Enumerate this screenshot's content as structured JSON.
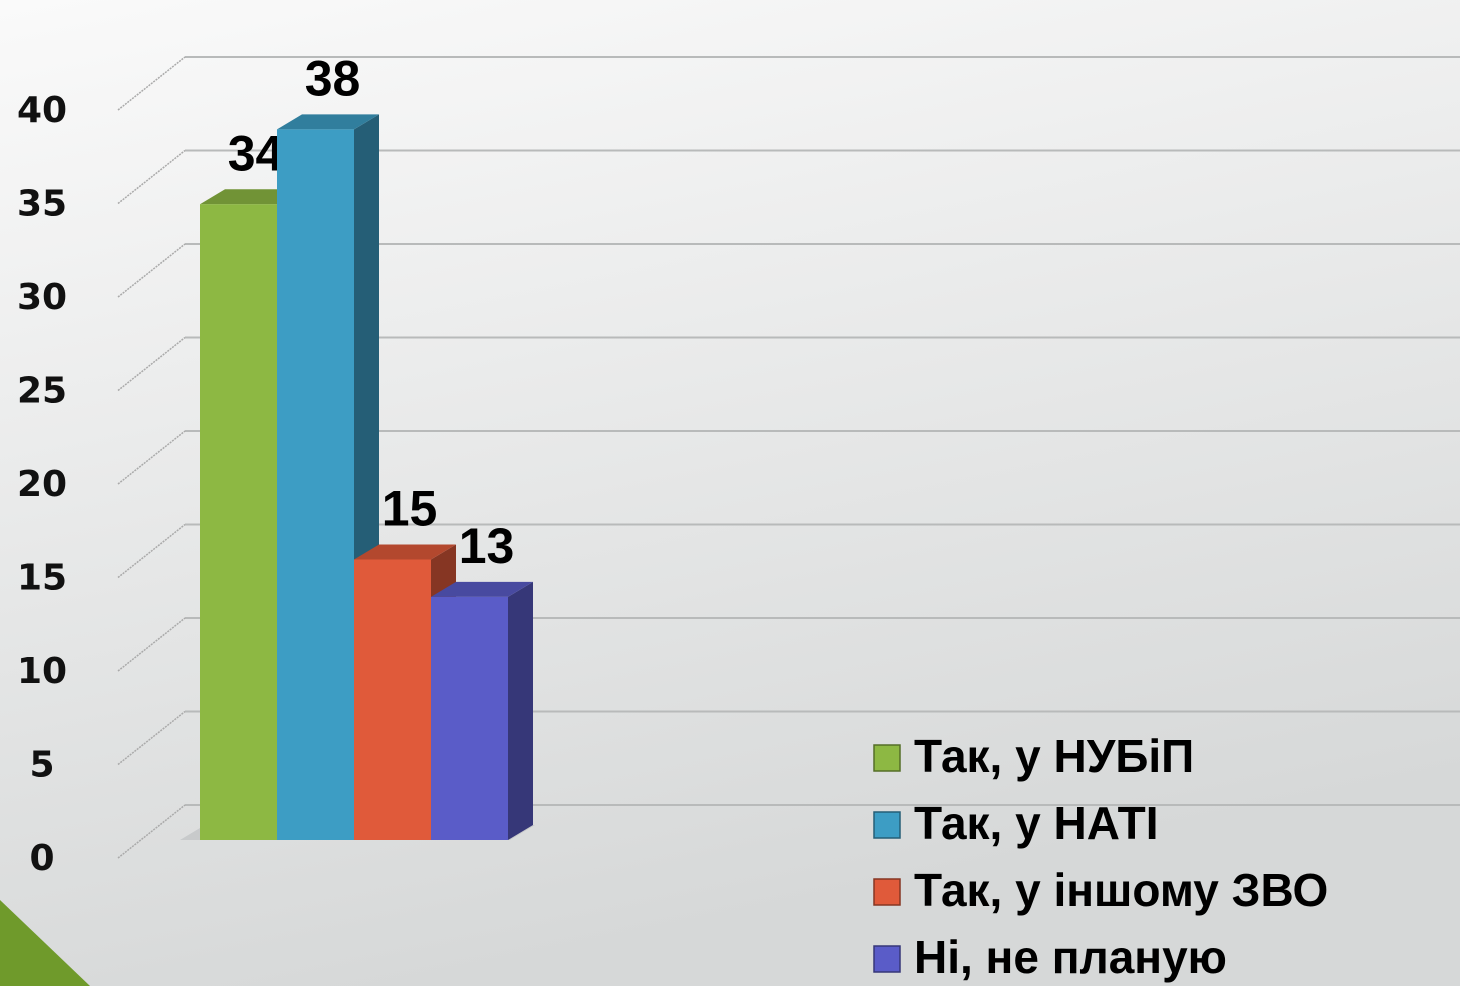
{
  "chart_data": {
    "type": "bar",
    "categories": [
      null
    ],
    "series": [
      {
        "name": "Так, у НУБіП",
        "color": "#8db843",
        "values": [
          34
        ]
      },
      {
        "name": "Так, у НАТІ",
        "color": "#3d9dc4",
        "values": [
          38
        ]
      },
      {
        "name": "Так, у іншому ЗВО",
        "color": "#e05a3a",
        "values": [
          15
        ]
      },
      {
        "name": "Ні, не планую",
        "color": "#5a5cc8",
        "values": [
          13
        ]
      }
    ],
    "ylim": [
      0,
      40
    ],
    "yticks": [
      0,
      5,
      10,
      15,
      20,
      25,
      30,
      35,
      40
    ],
    "grid": true,
    "legend": "bottom-right"
  }
}
